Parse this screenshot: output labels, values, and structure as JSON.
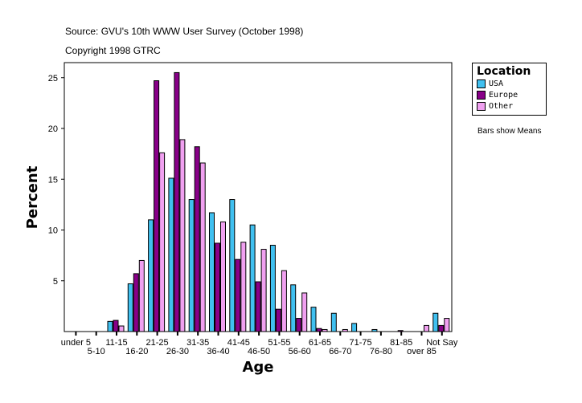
{
  "header": {
    "source": "Source: GVU's 10th WWW User Survey (October 1998)",
    "copyright": "Copyright 1998 GTRC"
  },
  "note": "Bars show Means",
  "chart_data": {
    "type": "bar",
    "xlabel": "Age",
    "ylabel": "Percent",
    "ylim": [
      0,
      26.5
    ],
    "yticks": [
      5,
      10,
      15,
      20,
      25
    ],
    "grid": false,
    "legend": {
      "title": "Location",
      "placement": "right"
    },
    "categories": [
      "under 5",
      "5-10",
      "11-15",
      "16-20",
      "21-25",
      "26-30",
      "31-35",
      "36-40",
      "41-45",
      "46-50",
      "51-55",
      "56-60",
      "61-65",
      "66-70",
      "71-75",
      "76-80",
      "81-85",
      "over 85",
      "Not Say"
    ],
    "series": [
      {
        "name": "USA",
        "color": "#40c0f0",
        "values": [
          0,
          0,
          1.0,
          4.7,
          11.0,
          15.1,
          13.0,
          11.7,
          13.0,
          10.5,
          8.5,
          4.6,
          2.4,
          1.8,
          0.8,
          0.2,
          0,
          0,
          1.8
        ]
      },
      {
        "name": "Europe",
        "color": "#880088",
        "values": [
          0,
          0,
          1.1,
          5.7,
          24.7,
          25.5,
          18.2,
          8.7,
          7.1,
          4.9,
          2.2,
          1.3,
          0.3,
          0,
          0,
          0,
          0.1,
          0,
          0.6
        ]
      },
      {
        "name": "Other",
        "color": "#f0a0f0",
        "values": [
          0,
          0,
          0.55,
          7.0,
          17.6,
          18.9,
          16.6,
          10.8,
          8.8,
          8.1,
          6.0,
          3.8,
          0.2,
          0.2,
          0,
          0,
          0,
          0.6,
          1.3
        ]
      }
    ]
  }
}
